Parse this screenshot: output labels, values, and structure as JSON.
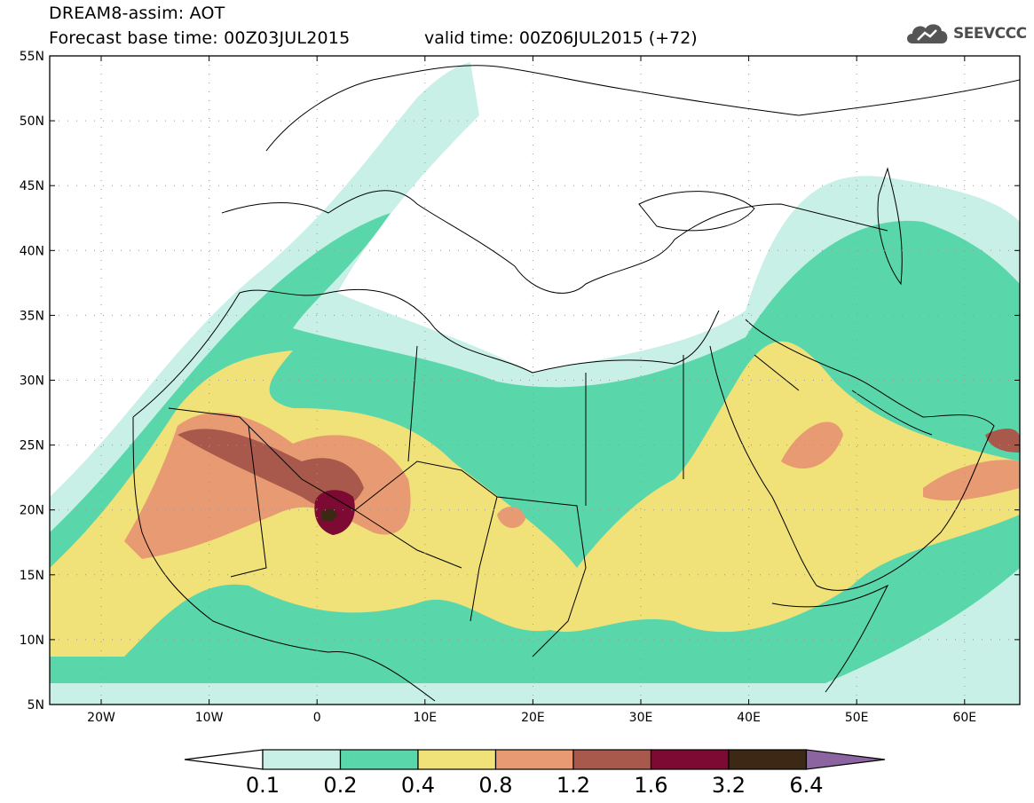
{
  "title": {
    "line1": "DREAM8-assim: AOT",
    "line2": "Forecast base time: 00Z03JUL2015",
    "valid": "valid time: 00Z06JUL2015 (+72)"
  },
  "logo": {
    "text": "SEEVCCC",
    "icon": "cloud-icon"
  },
  "axes": {
    "lat_labels": [
      "55N",
      "50N",
      "45N",
      "40N",
      "35N",
      "30N",
      "25N",
      "20N",
      "15N",
      "10N",
      "5N"
    ],
    "lon_labels": [
      "20W",
      "10W",
      "0",
      "10E",
      "20E",
      "30E",
      "40E",
      "50E",
      "60E"
    ]
  },
  "colorbar": {
    "labels": [
      "0.1",
      "0.2",
      "0.4",
      "0.8",
      "1.2",
      "1.6",
      "3.2",
      "6.4"
    ],
    "colors": [
      "#ffffff",
      "#c8f0e6",
      "#5ad7aa",
      "#f0e178",
      "#e89a72",
      "#a9594b",
      "#7d0a32",
      "#3c2814",
      "#8c64a0"
    ]
  }
}
